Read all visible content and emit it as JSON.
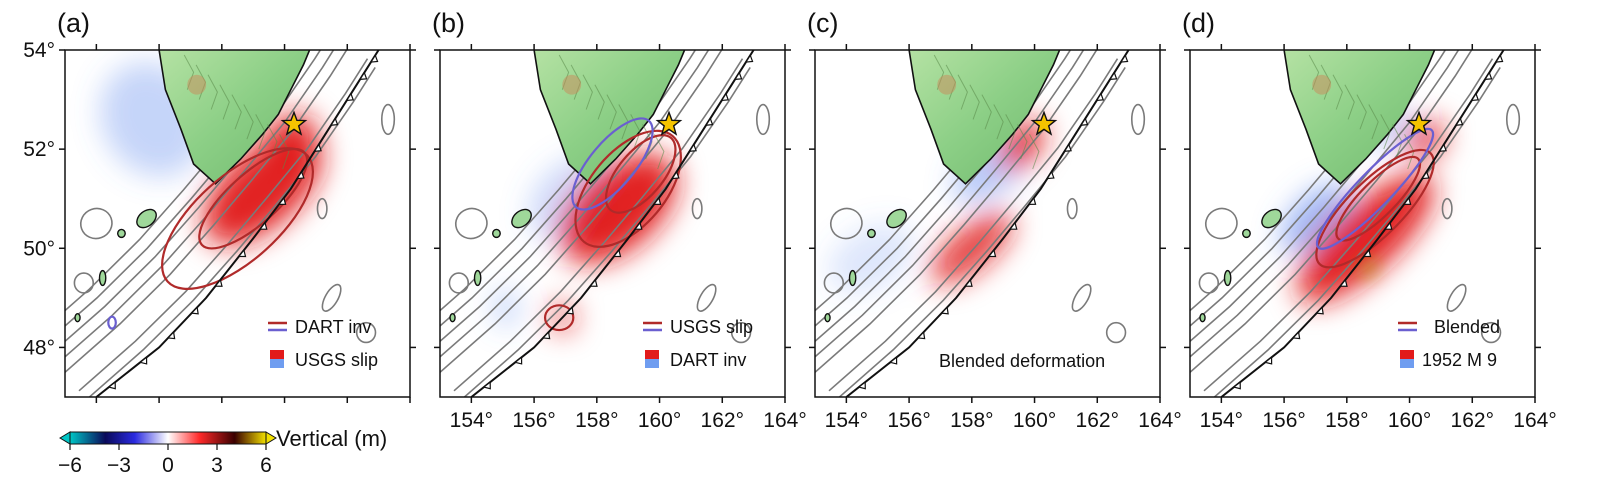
{
  "panels": [
    {
      "label": "(a)",
      "show_lat_labels": true,
      "show_lon_labels": false,
      "line_legend": "DART inv",
      "fill_legend": "USGS slip",
      "line_colors": [
        "#b02a2a",
        "#6a5fd0"
      ],
      "fill_colors": [
        "#e21b1b",
        "#6f9df0"
      ],
      "annotation": ""
    },
    {
      "label": "(b)",
      "show_lat_labels": false,
      "show_lon_labels": true,
      "line_legend": "USGS slip",
      "fill_legend": "DART inv",
      "line_colors": [
        "#b02a2a",
        "#6a5fd0"
      ],
      "fill_colors": [
        "#e21b1b",
        "#6f9df0"
      ],
      "annotation": ""
    },
    {
      "label": "(c)",
      "show_lat_labels": false,
      "show_lon_labels": true,
      "line_legend": "",
      "fill_legend": "",
      "annotation": "Blended deformation"
    },
    {
      "label": "(d)",
      "show_lat_labels": false,
      "show_lon_labels": true,
      "line_legend": "Blended",
      "fill_legend": "1952 M 9",
      "line_colors": [
        "#b02a2a",
        "#6a5fd0"
      ],
      "fill_colors": [
        "#e21b1b",
        "#6f9df0"
      ],
      "annotation": ""
    }
  ],
  "map": {
    "lon_min": 153,
    "lon_max": 164,
    "lat_min": 47,
    "lat_max": 54,
    "lat_ticks": [
      54,
      52,
      50,
      48
    ],
    "lat_tick_labels": [
      "54°",
      "52°",
      "50°",
      "48°"
    ],
    "lon_ticks": [
      154,
      156,
      158,
      160,
      162,
      164
    ],
    "lon_tick_labels": [
      "154°",
      "156°",
      "158°",
      "160°",
      "162°",
      "164°"
    ],
    "epicenter": {
      "lon": 160.3,
      "lat": 52.5
    },
    "colors": {
      "land": "#9fd89a",
      "contour": "#7a7a7a",
      "trench": "#111111",
      "star": "#f5c400"
    }
  },
  "colorbar": {
    "label": "Vertical (m)",
    "ticks": [
      -6,
      -3,
      0,
      3,
      6
    ],
    "tick_labels": [
      "−6",
      "−3",
      "0",
      "3",
      "6"
    ],
    "range": [
      -6,
      6
    ],
    "colors": [
      "#00c6c6",
      "#0a0a5a",
      "#2a2ae0",
      "#ffffff",
      "#ff2a2a",
      "#3a0000",
      "#f2e000"
    ]
  }
}
